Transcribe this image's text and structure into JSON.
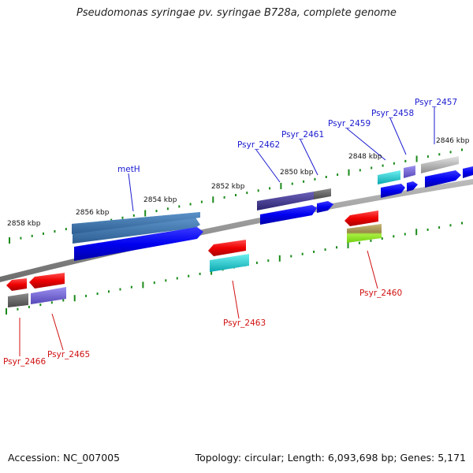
{
  "title": "Pseudomonas syringae pv. syringae B728a, complete genome",
  "footer": {
    "accession": "Accession: NC_007005",
    "topology": "Topology: circular; Length: 6,093,698 bp; Genes: 5,171"
  },
  "map": {
    "ticks_upper": [
      "2846 kbp",
      "2848 kbp",
      "2850 kbp",
      "2852 kbp",
      "2854 kbp",
      "2856 kbp",
      "2858 kbp"
    ],
    "genes_upper": [
      "Psyr_2457",
      "Psyr_2458",
      "Psyr_2459",
      "Psyr_2461",
      "Psyr_2462",
      "metH"
    ],
    "genes_lower": [
      "Psyr_2460",
      "Psyr_2463",
      "Psyr_2465",
      "Psyr_2466"
    ],
    "colors": {
      "label_forward": "#1a1ad0",
      "label_reverse": "#d01010",
      "tick": "#1a8a1a",
      "backbone": "#888888"
    }
  }
}
